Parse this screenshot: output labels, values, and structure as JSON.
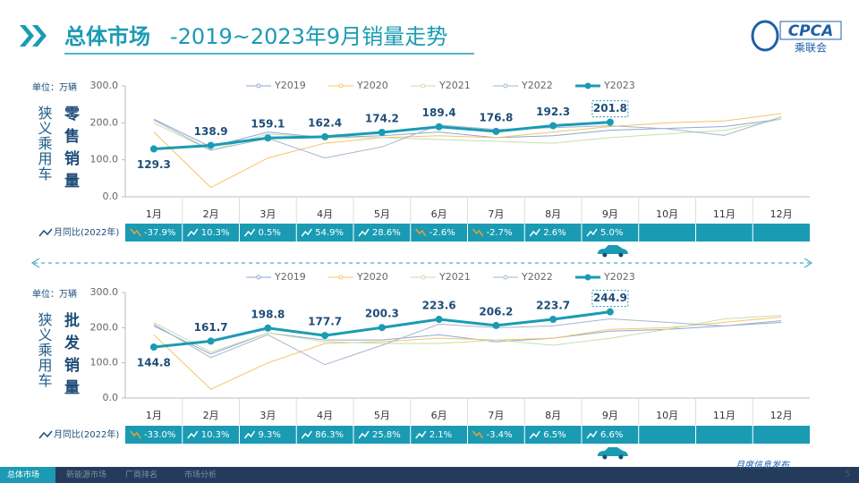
{
  "header": {
    "title_main": "总体市场",
    "title_sub": "-2019~2023年9月销量走势",
    "logo": "CPCA",
    "logo_sub": "乘联会"
  },
  "chart_data": [
    {
      "type": "line",
      "unit": "单位：万辆",
      "side_label": "狭义乘用车",
      "metric_label": "零售销量",
      "categories": [
        "1月",
        "2月",
        "3月",
        "4月",
        "5月",
        "6月",
        "7月",
        "8月",
        "9月",
        "10月",
        "11月",
        "12月"
      ],
      "ylim": [
        0,
        300
      ],
      "yticks": [
        {
          "value": 0,
          "label": "0.0"
        },
        {
          "value": 100,
          "label": "100.0"
        },
        {
          "value": 200,
          "label": "200.0"
        },
        {
          "value": 300,
          "label": "300.0"
        }
      ],
      "series": [
        {
          "name": "Y2019",
          "color": "#8fa6d6",
          "values": [
            210,
            135,
            175,
            160,
            165,
            175,
            160,
            165,
            180,
            185,
            190,
            210
          ]
        },
        {
          "name": "Y2020",
          "color": "#f4c566",
          "values": [
            175,
            25,
            105,
            145,
            160,
            165,
            160,
            175,
            190,
            200,
            205,
            225
          ]
        },
        {
          "name": "Y2021",
          "color": "#c6dfae",
          "values": [
            200,
            125,
            170,
            160,
            160,
            155,
            150,
            145,
            160,
            170,
            180,
            210
          ]
        },
        {
          "name": "Y2022",
          "color": "#a6b6cc",
          "values": [
            208,
            126,
            158,
            105,
            135,
            194,
            182,
            187,
            192,
            184,
            166,
            216
          ]
        },
        {
          "name": "Y2023",
          "color": "#1a9bb3",
          "values": [
            129.3,
            138.9,
            159.1,
            162.4,
            174.2,
            189.4,
            176.8,
            192.3,
            201.8,
            null,
            null,
            null
          ]
        }
      ],
      "yoy": {
        "label": "月同比(2022年)",
        "values": [
          -37.9,
          10.3,
          0.5,
          54.9,
          28.6,
          -2.6,
          -2.7,
          2.6,
          5.0
        ],
        "value_labels": [
          "-37.9%",
          "10.3%",
          "0.5%",
          "54.9%",
          "28.6%",
          "-2.6%",
          "-2.7%",
          "2.6%",
          "5.0%"
        ]
      }
    },
    {
      "type": "line",
      "unit": "单位：万辆",
      "side_label": "狭义乘用车",
      "metric_label": "批发销量",
      "categories": [
        "1月",
        "2月",
        "3月",
        "4月",
        "5月",
        "6月",
        "7月",
        "8月",
        "9月",
        "10月",
        "11月",
        "12月"
      ],
      "ylim": [
        0,
        300
      ],
      "yticks": [
        {
          "value": 0,
          "label": "0.0"
        },
        {
          "value": 100,
          "label": "100.0"
        },
        {
          "value": 200,
          "label": "200.0"
        },
        {
          "value": 300,
          "label": "300.0"
        }
      ],
      "series": [
        {
          "name": "Y2019",
          "color": "#8fa6d6",
          "values": [
            205,
            125,
            185,
            165,
            165,
            180,
            160,
            170,
            190,
            195,
            205,
            215
          ]
        },
        {
          "name": "Y2020",
          "color": "#f4c566",
          "values": [
            180,
            25,
            100,
            155,
            160,
            170,
            165,
            170,
            195,
            200,
            215,
            230
          ]
        },
        {
          "name": "Y2021",
          "color": "#c6dfae",
          "values": [
            215,
            130,
            185,
            160,
            155,
            155,
            165,
            150,
            170,
            195,
            225,
            235
          ]
        },
        {
          "name": "Y2022",
          "color": "#a6b6cc",
          "values": [
            210,
            115,
            180,
            95,
            150,
            210,
            200,
            205,
            225,
            215,
            205,
            220
          ]
        },
        {
          "name": "Y2023",
          "color": "#1a9bb3",
          "values": [
            144.8,
            161.7,
            198.8,
            177.7,
            200.3,
            223.6,
            206.2,
            223.7,
            244.9,
            null,
            null,
            null
          ]
        }
      ],
      "yoy": {
        "label": "月同比(2022年)",
        "values": [
          -33.0,
          10.3,
          9.3,
          86.3,
          25.8,
          2.1,
          -3.4,
          6.5,
          6.6
        ],
        "value_labels": [
          "-33.0%",
          "10.3%",
          "9.3%",
          "86.3%",
          "25.8%",
          "2.1%",
          "-3.4%",
          "6.5%",
          "6.6%"
        ]
      }
    }
  ],
  "footer": {
    "tabs": [
      "总体市场",
      "新能源市场",
      "厂商排名",
      "市场分析"
    ],
    "note": "月度信息发布",
    "page": "5"
  }
}
